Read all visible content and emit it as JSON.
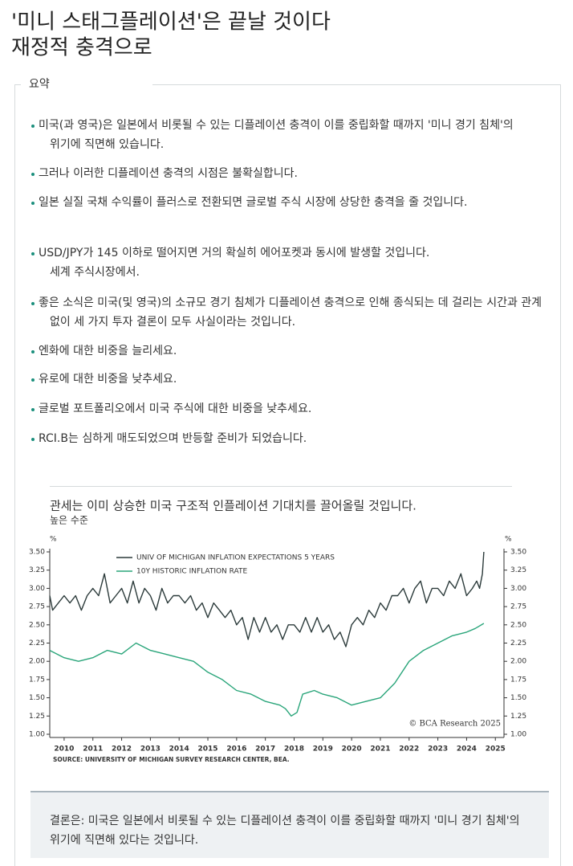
{
  "title_lines": [
    "'미니 스태그플레이션'은 끝날 것이다",
    "재정적 충격으로"
  ],
  "summary": {
    "label": "요약",
    "bullets": [
      [
        "미국(과 영국)은 일본에서 비롯될 수 있는 디플레이션 충격이 이를 중립화할 때까지 '미니 경기 침체'의",
        "위기에 직면해 있습니다."
      ],
      [
        "그러나 이러한 디플레이션 충격의 시점은 불확실합니다."
      ],
      [
        "일본 실질 국채 수익률이 플러스로 전환되면 글로벌 주식 시장에 상당한 충격을 줄 것입니다."
      ],
      [
        "USD/JPY가 145 이하로 떨어지면 거의 확실히 에어포켓과 동시에 발생할 것입니다.",
        "세계 주식시장에서."
      ],
      [
        "좋은 소식은 미국(및 영국)의 소규모 경기 침체가 디플레이션 충격으로 인해 종식되는 데 걸리는 시간과 관계",
        "없이 세 가지 투자 결론이 모두 사실이라는 것입니다."
      ],
      [
        "엔화에 대한 비중을 늘리세요."
      ],
      [
        "유로에 대한 비중을 낮추세요."
      ],
      [
        "글로벌 포트폴리오에서 미국 주식에 대한 비중을 낮추세요."
      ],
      [
        "RCI.B는 심하게 매도되었으며 반등할 준비가 되었습니다."
      ]
    ]
  },
  "chart_data": {
    "type": "line",
    "title": "관세는 이미 상승한 미국 구조적 인플레이션 기대치를 끌어올릴 것입니다.",
    "subtitle": "높은 수준",
    "y_unit": "%",
    "source": "SOURCE: UNIVERSITY OF MICHIGAN SURVEY RESEARCH CENTER, BEA.",
    "watermark": "© BCA Research 2025",
    "xlim": [
      2009.5,
      2025.3
    ],
    "xticks": [
      2010,
      2011,
      2012,
      2013,
      2014,
      2015,
      2016,
      2017,
      2018,
      2019,
      2020,
      2021,
      2022,
      2023,
      2024,
      2025
    ],
    "ylim": [
      1,
      3.5
    ],
    "yticks": [
      {
        "value": 1,
        "label": "1.00"
      },
      {
        "value": 1.25,
        "label": "1.25"
      },
      {
        "value": 1.5,
        "label": "1.50"
      },
      {
        "value": 1.75,
        "label": "1.75"
      },
      {
        "value": 2,
        "label": "2.00"
      },
      {
        "value": 2.25,
        "label": "2.25"
      },
      {
        "value": 2.5,
        "label": "2.50"
      },
      {
        "value": 2.75,
        "label": "2.75"
      },
      {
        "value": 3,
        "label": "3.00"
      },
      {
        "value": 3.25,
        "label": "3.25"
      },
      {
        "value": 3.5,
        "label": "3.50"
      }
    ],
    "series": [
      {
        "name": "UNIV OF MICHIGAN INFLATION EXPECTATIONS 5 YEARS",
        "color": "#2b3a3a",
        "x": [
          2009.5,
          2009.6,
          2009.8,
          2010.0,
          2010.2,
          2010.4,
          2010.6,
          2010.8,
          2011.0,
          2011.2,
          2011.4,
          2011.6,
          2011.8,
          2012.0,
          2012.2,
          2012.4,
          2012.6,
          2012.8,
          2013.0,
          2013.2,
          2013.4,
          2013.6,
          2013.8,
          2014.0,
          2014.2,
          2014.4,
          2014.6,
          2014.8,
          2015.0,
          2015.2,
          2015.4,
          2015.6,
          2015.8,
          2016.0,
          2016.2,
          2016.4,
          2016.6,
          2016.8,
          2017.0,
          2017.2,
          2017.4,
          2017.6,
          2017.8,
          2018.0,
          2018.2,
          2018.4,
          2018.6,
          2018.8,
          2019.0,
          2019.2,
          2019.4,
          2019.6,
          2019.8,
          2020.0,
          2020.2,
          2020.4,
          2020.6,
          2020.8,
          2021.0,
          2021.2,
          2021.4,
          2021.6,
          2021.8,
          2022.0,
          2022.2,
          2022.4,
          2022.6,
          2022.8,
          2023.0,
          2023.2,
          2023.4,
          2023.6,
          2023.8,
          2024.0,
          2024.2,
          2024.35,
          2024.45,
          2024.55,
          2024.6
        ],
        "values": [
          2.9,
          2.7,
          2.8,
          2.9,
          2.8,
          2.9,
          2.7,
          2.9,
          3.0,
          2.9,
          3.2,
          2.8,
          2.9,
          3.0,
          2.8,
          3.1,
          2.8,
          3.0,
          2.9,
          2.7,
          3.0,
          2.8,
          2.9,
          2.9,
          2.8,
          2.9,
          2.7,
          2.8,
          2.6,
          2.8,
          2.7,
          2.6,
          2.7,
          2.5,
          2.6,
          2.3,
          2.6,
          2.4,
          2.6,
          2.4,
          2.5,
          2.3,
          2.5,
          2.5,
          2.4,
          2.6,
          2.4,
          2.6,
          2.4,
          2.5,
          2.3,
          2.4,
          2.2,
          2.5,
          2.6,
          2.5,
          2.7,
          2.6,
          2.8,
          2.7,
          2.9,
          2.9,
          3.0,
          2.8,
          3.0,
          3.1,
          2.8,
          3.0,
          3.0,
          2.9,
          3.1,
          3.0,
          3.2,
          2.9,
          3.0,
          3.1,
          3.0,
          3.2,
          3.5
        ]
      },
      {
        "name": "10Y HISTORIC INFLATION RATE",
        "color": "#2aa57a",
        "x": [
          2009.5,
          2010.0,
          2010.5,
          2011.0,
          2011.5,
          2012.0,
          2012.5,
          2013.0,
          2013.5,
          2014.0,
          2014.5,
          2015.0,
          2015.5,
          2016.0,
          2016.5,
          2017.0,
          2017.5,
          2017.7,
          2017.9,
          2018.1,
          2018.3,
          2018.7,
          2019.0,
          2019.5,
          2020.0,
          2020.5,
          2021.0,
          2021.5,
          2022.0,
          2022.5,
          2023.0,
          2023.5,
          2024.0,
          2024.3,
          2024.6
        ],
        "values": [
          2.15,
          2.05,
          2.0,
          2.05,
          2.15,
          2.1,
          2.25,
          2.15,
          2.1,
          2.05,
          2.0,
          1.85,
          1.75,
          1.6,
          1.55,
          1.45,
          1.4,
          1.35,
          1.25,
          1.3,
          1.55,
          1.6,
          1.55,
          1.5,
          1.4,
          1.45,
          1.5,
          1.7,
          2.0,
          2.15,
          2.25,
          2.35,
          2.4,
          2.45,
          2.52
        ]
      }
    ]
  },
  "conclusion": [
    "결론은: 미국은 일본에서 비롯될 수 있는 디플레이션 충격이 이를 중립화할 때까지 '미니 경기 침체'의",
    "위기에 직면해 있다는 것입니다."
  ]
}
